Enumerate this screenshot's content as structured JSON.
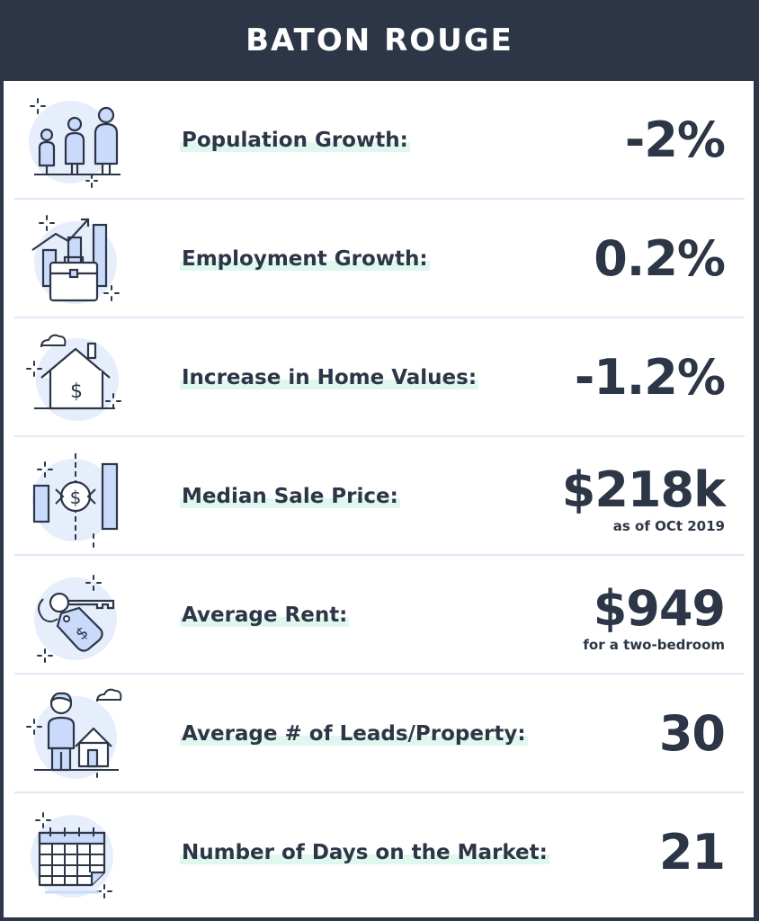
{
  "header": {
    "title": "BATON ROUGE"
  },
  "rows": [
    {
      "icon": "people-icon",
      "label": "Population Growth:",
      "value": "-2%",
      "note": ""
    },
    {
      "icon": "briefcase-chart-icon",
      "label": "Employment Growth:",
      "value": "0.2%",
      "note": ""
    },
    {
      "icon": "house-dollar-icon",
      "label": "Increase in Home Values:",
      "value": "-1.2%",
      "note": ""
    },
    {
      "icon": "sale-price-chart-icon",
      "label": "Median Sale Price:",
      "value": "$218k",
      "note": "as of OCt 2019"
    },
    {
      "icon": "key-tag-icon",
      "label": "Average Rent:",
      "value": "$949",
      "note": "for a two-bedroom"
    },
    {
      "icon": "person-house-icon",
      "label": "Average # of Leads/Property:",
      "value": "30",
      "note": ""
    },
    {
      "icon": "calendar-icon",
      "label": "Number of Days on the Market:",
      "value": "21",
      "note": ""
    }
  ],
  "colors": {
    "navy": "#2c3646",
    "icon_bg": "#e6eefc",
    "icon_fill": "#c9dafb",
    "highlight": "#dff7ee",
    "divider": "#dfe8f5"
  }
}
